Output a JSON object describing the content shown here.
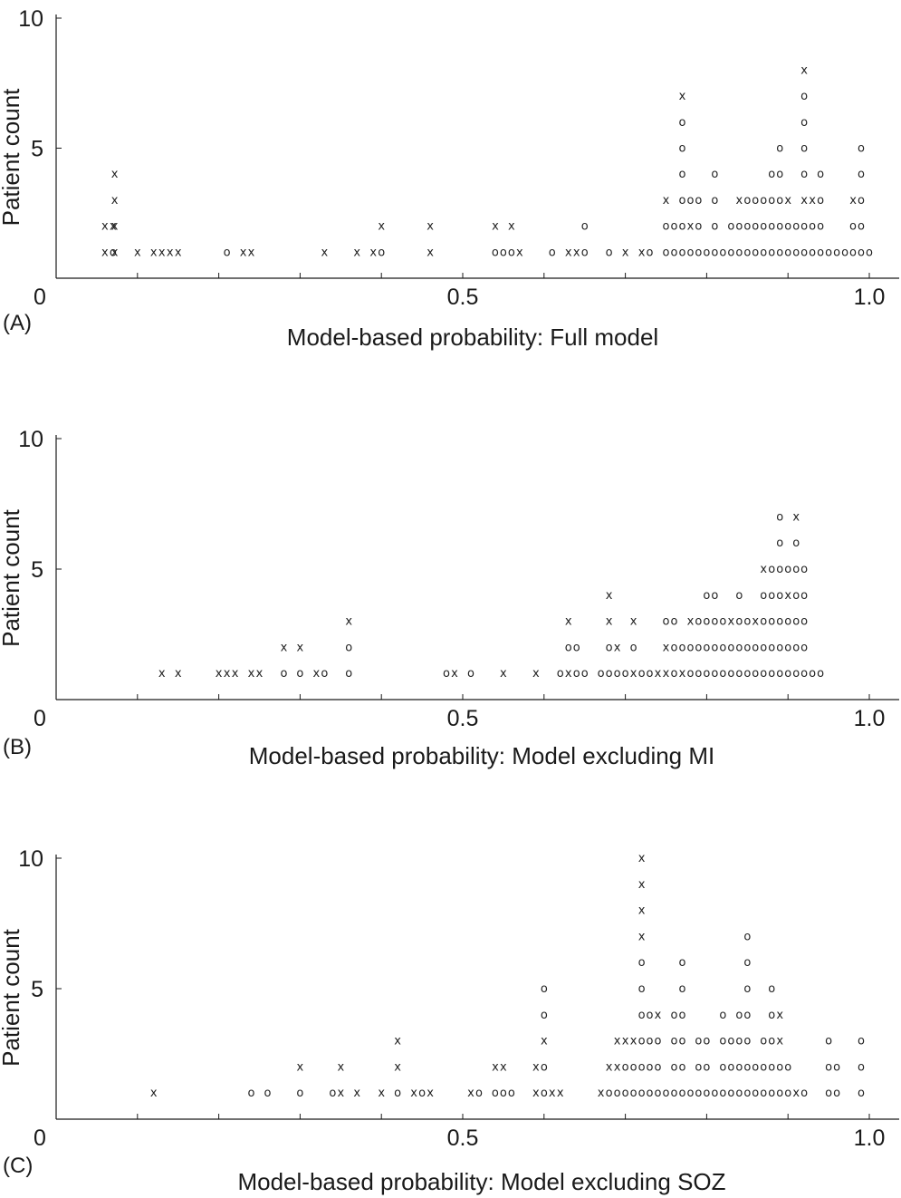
{
  "chart_data": [
    {
      "type": "scatter",
      "panel": "(A)",
      "xlabel": "Model-based probability: Full model",
      "ylabel": "Patient count",
      "xlim": [
        0,
        1.0
      ],
      "ylim": [
        0,
        10
      ],
      "xticks": [
        "0",
        "0.5",
        "1.0"
      ],
      "yticks": [
        "5",
        "10"
      ],
      "marker_legend": {
        "o": "o",
        "x": "x"
      },
      "stacks": [
        {
          "x": 0.07,
          "marks": "ox"
        },
        {
          "x": 0.06,
          "marks": "xx"
        },
        {
          "x": 0.072,
          "marks": "xxxx"
        },
        {
          "x": 0.1,
          "marks": "x"
        },
        {
          "x": 0.12,
          "marks": "x"
        },
        {
          "x": 0.13,
          "marks": "x"
        },
        {
          "x": 0.14,
          "marks": "x"
        },
        {
          "x": 0.15,
          "marks": "x"
        },
        {
          "x": 0.21,
          "marks": "o"
        },
        {
          "x": 0.23,
          "marks": "x"
        },
        {
          "x": 0.24,
          "marks": "x"
        },
        {
          "x": 0.33,
          "marks": "x"
        },
        {
          "x": 0.37,
          "marks": "x"
        },
        {
          "x": 0.39,
          "marks": "x"
        },
        {
          "x": 0.4,
          "marks": "ox"
        },
        {
          "x": 0.46,
          "marks": "xx"
        },
        {
          "x": 0.54,
          "marks": "ox"
        },
        {
          "x": 0.55,
          "marks": "o"
        },
        {
          "x": 0.56,
          "marks": "ox"
        },
        {
          "x": 0.57,
          "marks": "x"
        },
        {
          "x": 0.61,
          "marks": "o"
        },
        {
          "x": 0.63,
          "marks": "x"
        },
        {
          "x": 0.64,
          "marks": "x"
        },
        {
          "x": 0.65,
          "marks": "oo"
        },
        {
          "x": 0.68,
          "marks": "o"
        },
        {
          "x": 0.7,
          "marks": "x"
        },
        {
          "x": 0.72,
          "marks": "x"
        },
        {
          "x": 0.73,
          "marks": "o"
        },
        {
          "x": 0.75,
          "marks": "oox"
        },
        {
          "x": 0.76,
          "marks": "oo"
        },
        {
          "x": 0.77,
          "marks": "oooooox"
        },
        {
          "x": 0.78,
          "marks": "oxo"
        },
        {
          "x": 0.79,
          "marks": "ooo"
        },
        {
          "x": 0.8,
          "marks": "o"
        },
        {
          "x": 0.81,
          "marks": "oooo"
        },
        {
          "x": 0.82,
          "marks": "o"
        },
        {
          "x": 0.83,
          "marks": "oo"
        },
        {
          "x": 0.84,
          "marks": "oox"
        },
        {
          "x": 0.85,
          "marks": "ooo"
        },
        {
          "x": 0.86,
          "marks": "ooo"
        },
        {
          "x": 0.87,
          "marks": "ooo"
        },
        {
          "x": 0.88,
          "marks": "oooo"
        },
        {
          "x": 0.89,
          "marks": "ooooo"
        },
        {
          "x": 0.9,
          "marks": "oox"
        },
        {
          "x": 0.91,
          "marks": "oo"
        },
        {
          "x": 0.92,
          "marks": "ooxoooox"
        },
        {
          "x": 0.93,
          "marks": "oox"
        },
        {
          "x": 0.94,
          "marks": "oooo"
        },
        {
          "x": 0.95,
          "marks": "o"
        },
        {
          "x": 0.96,
          "marks": "o"
        },
        {
          "x": 0.97,
          "marks": "o"
        },
        {
          "x": 0.98,
          "marks": "oox"
        },
        {
          "x": 0.99,
          "marks": "ooooo"
        },
        {
          "x": 1.0,
          "marks": "o"
        }
      ]
    },
    {
      "type": "scatter",
      "panel": "(B)",
      "xlabel": "Model-based probability: Model excluding MI",
      "ylabel": "Patient count",
      "xlim": [
        0,
        1.0
      ],
      "ylim": [
        0,
        10
      ],
      "xticks": [
        "0",
        "0.5",
        "1.0"
      ],
      "yticks": [
        "5",
        "10"
      ],
      "marker_legend": {
        "o": "o",
        "x": "x"
      },
      "stacks": [
        {
          "x": 0.13,
          "marks": "x"
        },
        {
          "x": 0.15,
          "marks": "x"
        },
        {
          "x": 0.2,
          "marks": "x"
        },
        {
          "x": 0.21,
          "marks": "x"
        },
        {
          "x": 0.22,
          "marks": "x"
        },
        {
          "x": 0.24,
          "marks": "x"
        },
        {
          "x": 0.25,
          "marks": "x"
        },
        {
          "x": 0.28,
          "marks": "ox"
        },
        {
          "x": 0.3,
          "marks": "ox"
        },
        {
          "x": 0.32,
          "marks": "x"
        },
        {
          "x": 0.33,
          "marks": "o"
        },
        {
          "x": 0.36,
          "marks": "oox"
        },
        {
          "x": 0.48,
          "marks": "o"
        },
        {
          "x": 0.49,
          "marks": "x"
        },
        {
          "x": 0.51,
          "marks": "o"
        },
        {
          "x": 0.55,
          "marks": "x"
        },
        {
          "x": 0.59,
          "marks": "x"
        },
        {
          "x": 0.62,
          "marks": "o"
        },
        {
          "x": 0.63,
          "marks": "xox"
        },
        {
          "x": 0.64,
          "marks": "oo"
        },
        {
          "x": 0.65,
          "marks": "o"
        },
        {
          "x": 0.67,
          "marks": "o"
        },
        {
          "x": 0.68,
          "marks": "ooxx"
        },
        {
          "x": 0.69,
          "marks": "ox"
        },
        {
          "x": 0.7,
          "marks": "o"
        },
        {
          "x": 0.71,
          "marks": "xox"
        },
        {
          "x": 0.72,
          "marks": "o"
        },
        {
          "x": 0.73,
          "marks": "o"
        },
        {
          "x": 0.74,
          "marks": "x"
        },
        {
          "x": 0.75,
          "marks": "xxo"
        },
        {
          "x": 0.76,
          "marks": "ooo"
        },
        {
          "x": 0.77,
          "marks": "xo"
        },
        {
          "x": 0.78,
          "marks": "oox"
        },
        {
          "x": 0.79,
          "marks": "ooo"
        },
        {
          "x": 0.8,
          "marks": "oooo"
        },
        {
          "x": 0.81,
          "marks": "oooo"
        },
        {
          "x": 0.82,
          "marks": "ooo"
        },
        {
          "x": 0.83,
          "marks": "oox"
        },
        {
          "x": 0.84,
          "marks": "oooo"
        },
        {
          "x": 0.85,
          "marks": "ooo"
        },
        {
          "x": 0.86,
          "marks": "oox"
        },
        {
          "x": 0.87,
          "marks": "oooox"
        },
        {
          "x": 0.88,
          "marks": "ooooo"
        },
        {
          "x": 0.89,
          "marks": "ooooooo"
        },
        {
          "x": 0.9,
          "marks": "oooxo"
        },
        {
          "x": 0.91,
          "marks": "oooooox"
        },
        {
          "x": 0.92,
          "marks": "ooooo"
        },
        {
          "x": 0.93,
          "marks": "o"
        },
        {
          "x": 0.94,
          "marks": "o"
        }
      ]
    },
    {
      "type": "scatter",
      "panel": "(C)",
      "xlabel": "Model-based probability: Model excluding SOZ",
      "ylabel": "Patient count",
      "xlim": [
        0,
        1.0
      ],
      "ylim": [
        0,
        10
      ],
      "xticks": [
        "0",
        "0.5",
        "1.0"
      ],
      "yticks": [
        "5",
        "10"
      ],
      "marker_legend": {
        "o": "o",
        "x": "x"
      },
      "stacks": [
        {
          "x": 0.12,
          "marks": "x"
        },
        {
          "x": 0.24,
          "marks": "o"
        },
        {
          "x": 0.26,
          "marks": "o"
        },
        {
          "x": 0.3,
          "marks": "ox"
        },
        {
          "x": 0.34,
          "marks": "o"
        },
        {
          "x": 0.35,
          "marks": "xx"
        },
        {
          "x": 0.37,
          "marks": "x"
        },
        {
          "x": 0.4,
          "marks": "x"
        },
        {
          "x": 0.42,
          "marks": "oxx"
        },
        {
          "x": 0.44,
          "marks": "x"
        },
        {
          "x": 0.45,
          "marks": "o"
        },
        {
          "x": 0.46,
          "marks": "x"
        },
        {
          "x": 0.51,
          "marks": "x"
        },
        {
          "x": 0.52,
          "marks": "o"
        },
        {
          "x": 0.54,
          "marks": "ox"
        },
        {
          "x": 0.55,
          "marks": "ox"
        },
        {
          "x": 0.56,
          "marks": "o"
        },
        {
          "x": 0.59,
          "marks": "xx"
        },
        {
          "x": 0.6,
          "marks": "ooxoo"
        },
        {
          "x": 0.61,
          "marks": "x"
        },
        {
          "x": 0.62,
          "marks": "x"
        },
        {
          "x": 0.67,
          "marks": "x"
        },
        {
          "x": 0.68,
          "marks": "ox"
        },
        {
          "x": 0.69,
          "marks": "oxx"
        },
        {
          "x": 0.7,
          "marks": "oox"
        },
        {
          "x": 0.71,
          "marks": "oox"
        },
        {
          "x": 0.72,
          "marks": "ooooooxxxx"
        },
        {
          "x": 0.73,
          "marks": "oooo"
        },
        {
          "x": 0.74,
          "marks": "ooox"
        },
        {
          "x": 0.75,
          "marks": "o"
        },
        {
          "x": 0.76,
          "marks": "oooo"
        },
        {
          "x": 0.77,
          "marks": "oooooo"
        },
        {
          "x": 0.78,
          "marks": "o"
        },
        {
          "x": 0.79,
          "marks": "ooo"
        },
        {
          "x": 0.8,
          "marks": "ooo"
        },
        {
          "x": 0.81,
          "marks": "o"
        },
        {
          "x": 0.82,
          "marks": "oooo"
        },
        {
          "x": 0.83,
          "marks": "ooo"
        },
        {
          "x": 0.84,
          "marks": "oooo"
        },
        {
          "x": 0.85,
          "marks": "ooooooo"
        },
        {
          "x": 0.86,
          "marks": "oo"
        },
        {
          "x": 0.87,
          "marks": "ooo"
        },
        {
          "x": 0.88,
          "marks": "ooooo"
        },
        {
          "x": 0.89,
          "marks": "ooxx"
        },
        {
          "x": 0.9,
          "marks": "oo"
        },
        {
          "x": 0.91,
          "marks": "x"
        },
        {
          "x": 0.92,
          "marks": "o"
        },
        {
          "x": 0.95,
          "marks": "ooo"
        },
        {
          "x": 0.96,
          "marks": "oo"
        },
        {
          "x": 0.99,
          "marks": "ooo"
        }
      ]
    }
  ]
}
